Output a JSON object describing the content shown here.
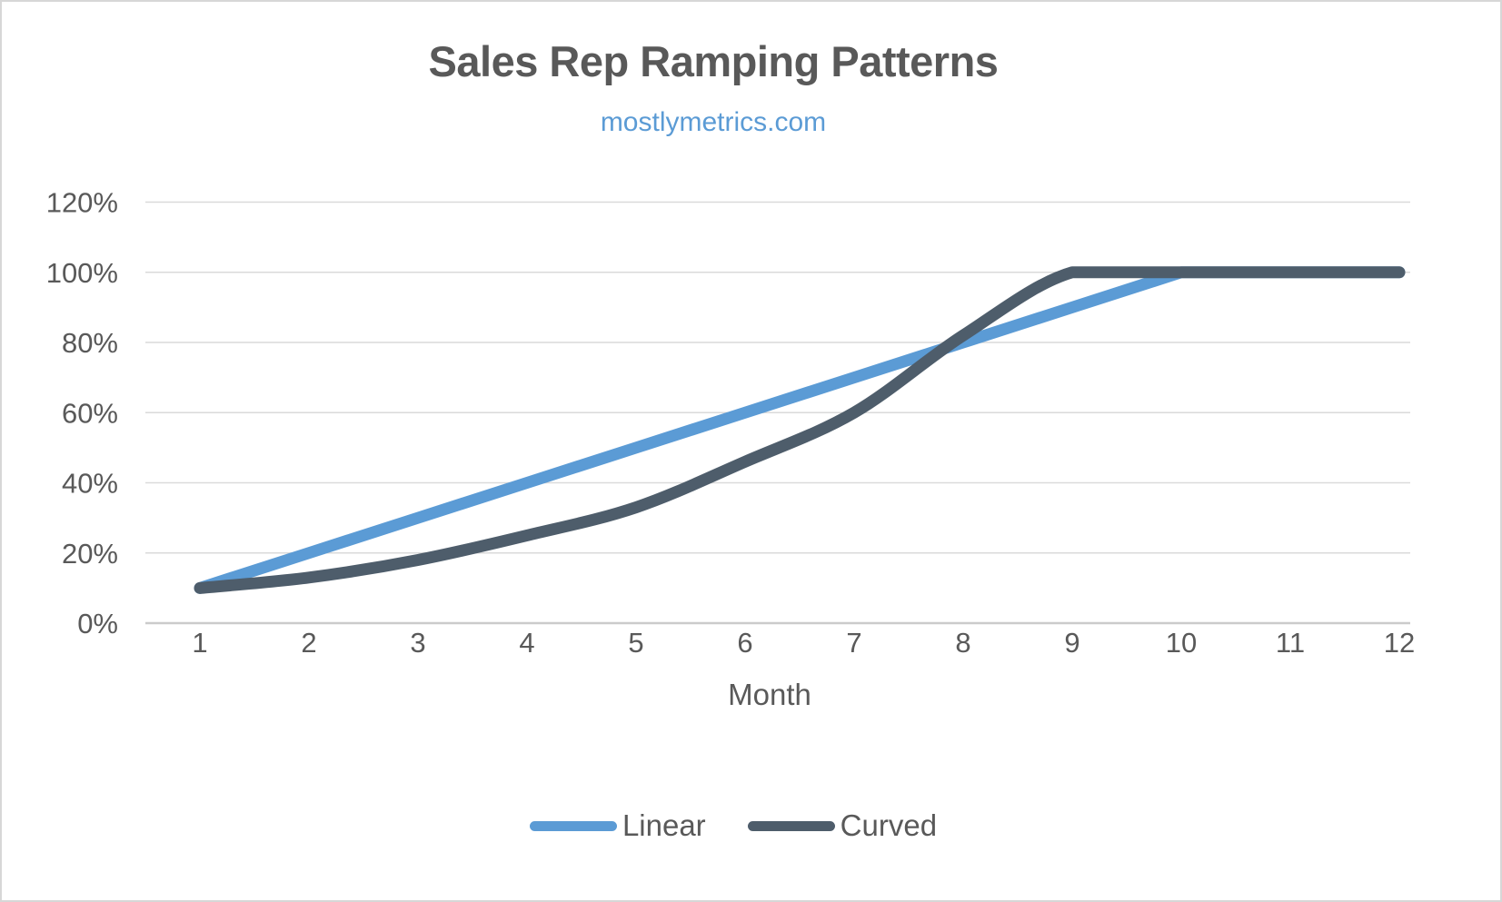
{
  "chart_data": {
    "type": "line",
    "title": "Sales Rep Ramping Patterns",
    "subtitle": "mostlymetrics.com",
    "xlabel": "Month",
    "ylabel": "",
    "categories": [
      "1",
      "2",
      "3",
      "4",
      "5",
      "6",
      "7",
      "8",
      "9",
      "10",
      "11",
      "12"
    ],
    "series": [
      {
        "name": "Linear",
        "color": "#5b9bd5",
        "smooth": false,
        "values": [
          10,
          20,
          30,
          40,
          50,
          60,
          70,
          80,
          90,
          100,
          100,
          100
        ]
      },
      {
        "name": "Curved",
        "color": "#4e5d6b",
        "smooth": true,
        "values": [
          10,
          13,
          18,
          25,
          33,
          46,
          60,
          82,
          100,
          100,
          100,
          100
        ]
      }
    ],
    "ylim": [
      0,
      120
    ],
    "yticks": {
      "values": [
        0,
        20,
        40,
        60,
        80,
        100,
        120
      ],
      "labels": [
        "0%",
        "20%",
        "40%",
        "60%",
        "80%",
        "100%",
        "120%"
      ]
    },
    "grid": true,
    "legend_position": "bottom"
  },
  "colors": {
    "title": "#595959",
    "subtitle": "#5b9bd5",
    "axis_text": "#595959",
    "gridline": "#dadada",
    "axis_line": "#cbcbcb",
    "linear_line": "#5b9bd5",
    "curved_line": "#4e5d6b"
  }
}
